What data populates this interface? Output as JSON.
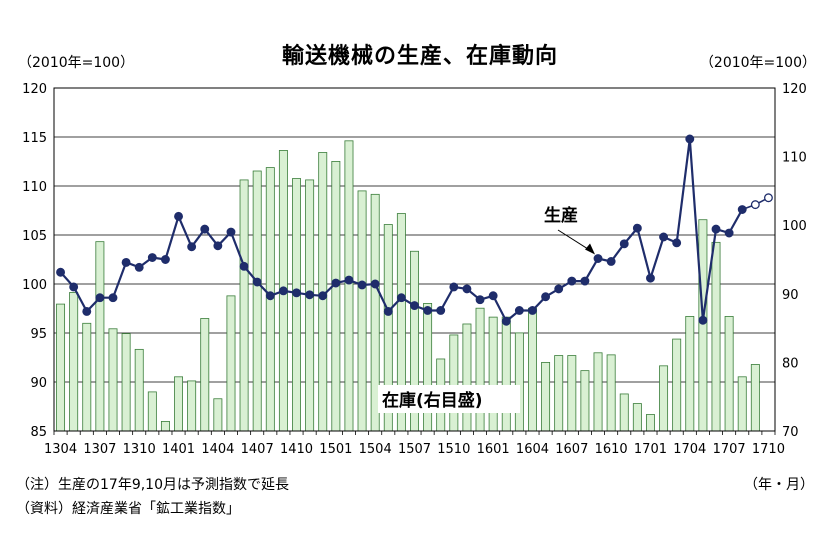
{
  "title": "輸送機械の生産、在庫動向",
  "left_unit": "（2010年=100）",
  "right_unit": "（2010年=100）",
  "x_unit": "（年・月）",
  "notes": [
    "（注）生産の17年9,10月は予測指数で延長",
    "（資料）経済産業省「鉱工業指数」"
  ],
  "chart_data": {
    "type": "bar+line",
    "title": "輸送機械の生産、在庫動向",
    "annotations": {
      "production": "生産",
      "inventory": "在庫(右目盛)"
    },
    "x_tick_labels": [
      "1304",
      "1307",
      "1310",
      "1401",
      "1404",
      "1407",
      "1410",
      "1501",
      "1504",
      "1507",
      "1510",
      "1601",
      "1604",
      "1607",
      "1610",
      "1701",
      "1704",
      "1707",
      "1710"
    ],
    "x": [
      "1304",
      "1305",
      "1306",
      "1307",
      "1308",
      "1309",
      "1310",
      "1311",
      "1312",
      "1401",
      "1402",
      "1403",
      "1404",
      "1405",
      "1406",
      "1407",
      "1408",
      "1409",
      "1410",
      "1411",
      "1412",
      "1501",
      "1502",
      "1503",
      "1504",
      "1505",
      "1506",
      "1507",
      "1508",
      "1509",
      "1510",
      "1511",
      "1512",
      "1601",
      "1602",
      "1603",
      "1604",
      "1605",
      "1606",
      "1607",
      "1608",
      "1609",
      "1610",
      "1611",
      "1612",
      "1701",
      "1702",
      "1703",
      "1704",
      "1705",
      "1706",
      "1707",
      "1708",
      "1709",
      "1710"
    ],
    "left_axis": {
      "min": 85,
      "max": 120,
      "ticks": [
        85,
        90,
        95,
        100,
        105,
        110,
        115,
        120
      ]
    },
    "right_axis": {
      "min": 70,
      "max": 120,
      "ticks": [
        70,
        80,
        90,
        100,
        110,
        120
      ]
    },
    "grid": true,
    "series": [
      {
        "name": "在庫(右目盛)",
        "axis": "right",
        "type": "bar",
        "color": "#d9f0d3",
        "edge_color": "#3a7d3a",
        "values": [
          88.5,
          90.2,
          85.7,
          97.6,
          84.9,
          84.2,
          81.9,
          75.7,
          71.4,
          77.9,
          77.3,
          86.4,
          74.7,
          89.7,
          106.6,
          107.9,
          108.4,
          110.9,
          106.8,
          106.6,
          110.6,
          109.3,
          112.3,
          105.0,
          104.5,
          100.1,
          101.7,
          96.2,
          88.6,
          80.5,
          84.0,
          85.6,
          87.9,
          86.6,
          86.6,
          84.3,
          87.9,
          80.0,
          81.0,
          81.0,
          78.8,
          81.4,
          81.1,
          75.4,
          74.0,
          72.4,
          79.5,
          83.4,
          86.7,
          100.8,
          97.5,
          86.7,
          77.9,
          79.7,
          null
        ]
      },
      {
        "name": "生産",
        "axis": "left",
        "type": "line",
        "color": "#1f2d6b",
        "forecast_from": "1709",
        "values": [
          101.2,
          99.7,
          97.2,
          98.6,
          98.6,
          102.2,
          101.7,
          102.7,
          102.5,
          106.9,
          103.8,
          105.6,
          103.9,
          105.3,
          101.8,
          100.2,
          98.8,
          99.3,
          99.1,
          98.9,
          98.8,
          100.1,
          100.4,
          99.9,
          100.0,
          97.2,
          98.6,
          97.8,
          97.3,
          97.3,
          99.7,
          99.5,
          98.4,
          98.8,
          96.2,
          97.3,
          97.3,
          98.7,
          99.5,
          100.3,
          100.3,
          102.6,
          102.3,
          104.1,
          105.7,
          100.6,
          104.8,
          104.2,
          114.8,
          96.3,
          105.6,
          105.2,
          107.6,
          108.1,
          108.8
        ]
      }
    ]
  }
}
